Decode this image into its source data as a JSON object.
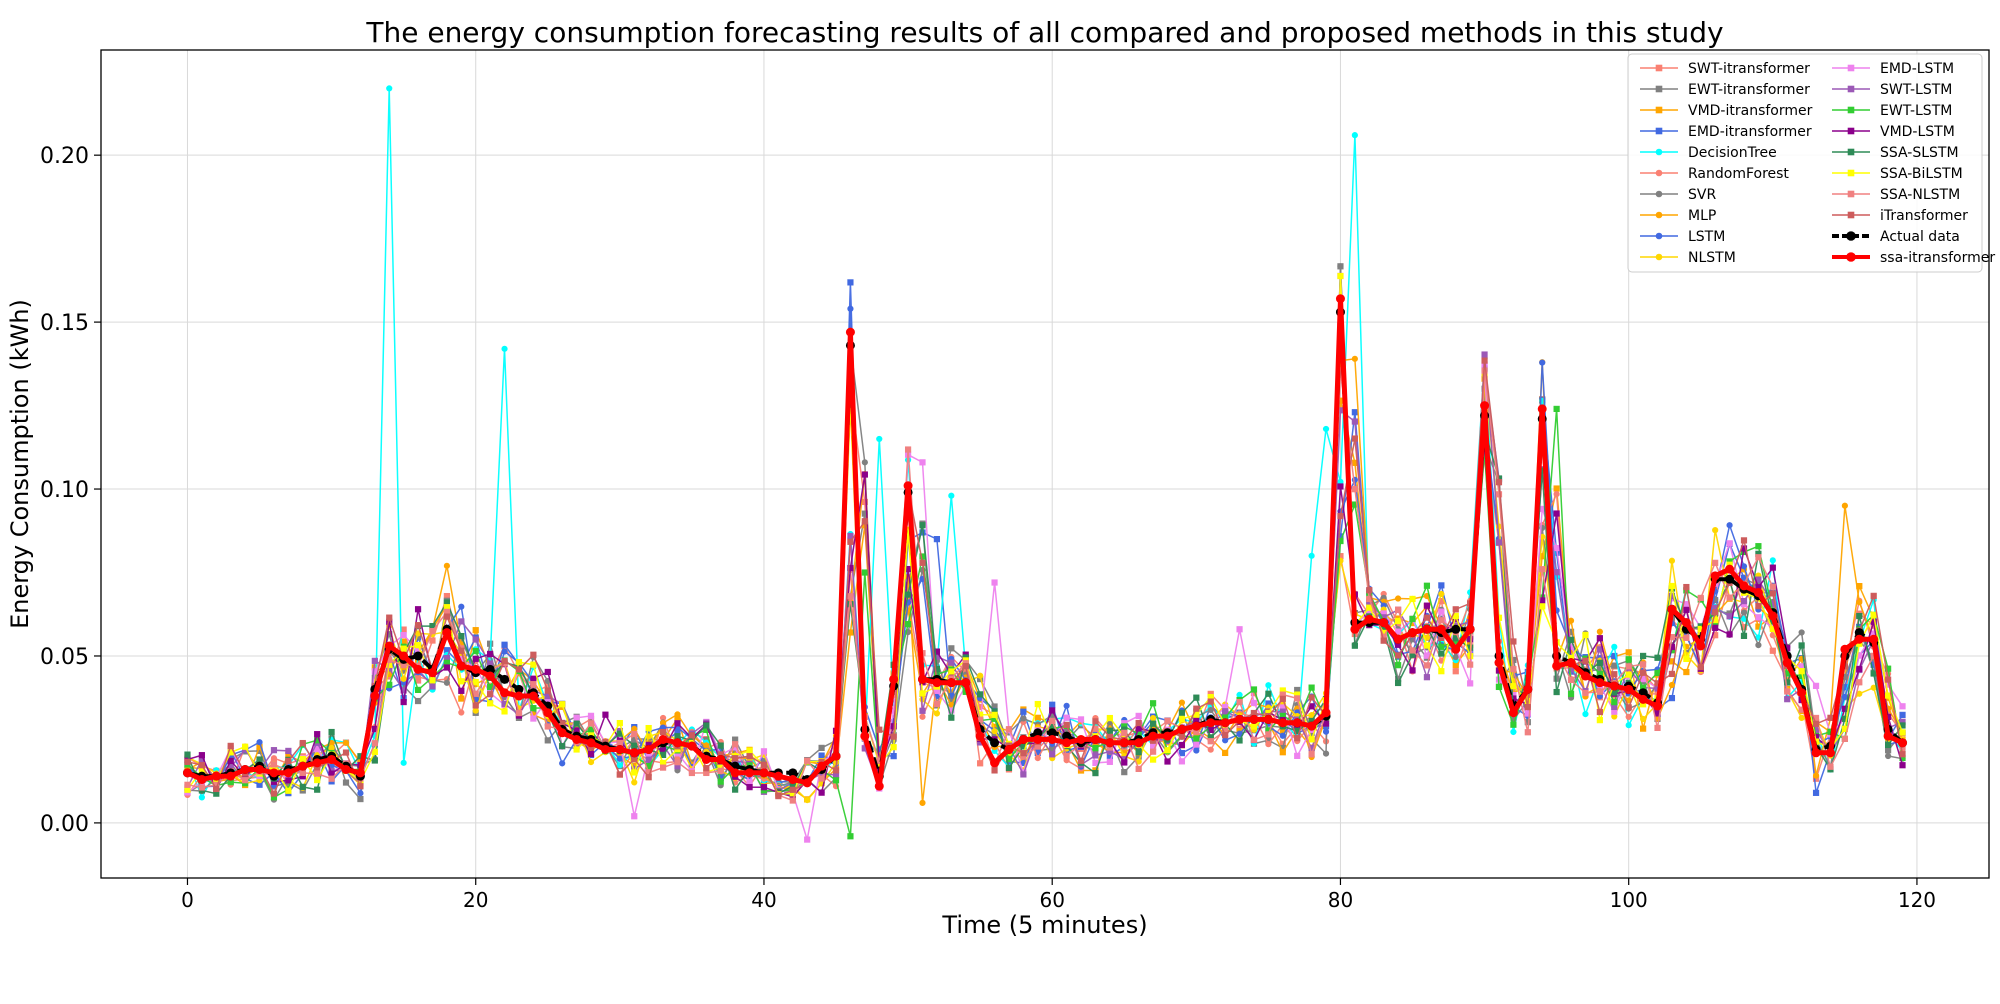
{
  "chart_data": {
    "type": "line",
    "title": "The energy consumption forecasting results of all compared and proposed methods in this study",
    "xlabel": "Time (5 minutes)",
    "ylabel": "Energy Consumption (kWh)",
    "xlim": [
      -6,
      125
    ],
    "ylim": [
      -0.0165,
      0.2315
    ],
    "xticks": [
      0,
      20,
      40,
      60,
      80,
      100,
      120
    ],
    "yticks": [
      0.0,
      0.05,
      0.1,
      0.15,
      0.2
    ],
    "ytick_labels": [
      "0.00",
      "0.05",
      "0.10",
      "0.15",
      "0.20"
    ],
    "grid": true,
    "legend_position": "top-right",
    "legend_columns": 2,
    "x": [
      0,
      1,
      2,
      3,
      4,
      5,
      6,
      7,
      8,
      9,
      10,
      11,
      12,
      13,
      14,
      15,
      16,
      17,
      18,
      19,
      20,
      21,
      22,
      23,
      24,
      25,
      26,
      27,
      28,
      29,
      30,
      31,
      32,
      33,
      34,
      35,
      36,
      37,
      38,
      39,
      40,
      41,
      42,
      43,
      44,
      45,
      46,
      47,
      48,
      49,
      50,
      51,
      52,
      53,
      54,
      55,
      56,
      57,
      58,
      59,
      60,
      61,
      62,
      63,
      64,
      65,
      66,
      67,
      68,
      69,
      70,
      71,
      72,
      73,
      74,
      75,
      76,
      77,
      78,
      79,
      80,
      81,
      82,
      83,
      84,
      85,
      86,
      87,
      88,
      89,
      90,
      91,
      92,
      93,
      94,
      95,
      96,
      97,
      98,
      99,
      100,
      101,
      102,
      103,
      104,
      105,
      106,
      107,
      108,
      109,
      110,
      111,
      112,
      113,
      114,
      115,
      116,
      117,
      118,
      119
    ],
    "actual": [
      0.015,
      0.014,
      0.014,
      0.015,
      0.016,
      0.017,
      0.014,
      0.016,
      0.017,
      0.019,
      0.02,
      0.017,
      0.014,
      0.04,
      0.052,
      0.049,
      0.05,
      0.046,
      0.058,
      0.047,
      0.045,
      0.046,
      0.043,
      0.04,
      0.039,
      0.035,
      0.028,
      0.026,
      0.025,
      0.023,
      0.022,
      0.021,
      0.022,
      0.024,
      0.024,
      0.023,
      0.02,
      0.019,
      0.017,
      0.016,
      0.015,
      0.015,
      0.015,
      0.013,
      0.016,
      0.02,
      0.143,
      0.028,
      0.014,
      0.041,
      0.099,
      0.043,
      0.043,
      0.042,
      0.042,
      0.028,
      0.024,
      0.022,
      0.025,
      0.027,
      0.027,
      0.026,
      0.024,
      0.025,
      0.024,
      0.024,
      0.025,
      0.027,
      0.027,
      0.028,
      0.029,
      0.031,
      0.03,
      0.031,
      0.031,
      0.031,
      0.03,
      0.03,
      0.029,
      0.032,
      0.153,
      0.06,
      0.06,
      0.06,
      0.055,
      0.057,
      0.058,
      0.057,
      0.058,
      0.058,
      0.122,
      0.05,
      0.035,
      0.04,
      0.121,
      0.05,
      0.048,
      0.045,
      0.043,
      0.041,
      0.041,
      0.039,
      0.036,
      0.064,
      0.058,
      0.055,
      0.073,
      0.073,
      0.07,
      0.068,
      0.063,
      0.05,
      0.04,
      0.022,
      0.023,
      0.05,
      0.057,
      0.054,
      0.028,
      0.024
    ],
    "predicted": [
      0.015,
      0.013,
      0.014,
      0.014,
      0.016,
      0.016,
      0.015,
      0.015,
      0.017,
      0.018,
      0.019,
      0.016,
      0.015,
      0.038,
      0.053,
      0.05,
      0.046,
      0.045,
      0.057,
      0.047,
      0.046,
      0.044,
      0.039,
      0.038,
      0.038,
      0.033,
      0.027,
      0.025,
      0.024,
      0.022,
      0.022,
      0.021,
      0.022,
      0.025,
      0.024,
      0.023,
      0.019,
      0.019,
      0.015,
      0.015,
      0.015,
      0.014,
      0.013,
      0.012,
      0.017,
      0.02,
      0.147,
      0.026,
      0.011,
      0.043,
      0.101,
      0.043,
      0.042,
      0.042,
      0.042,
      0.026,
      0.018,
      0.022,
      0.025,
      0.025,
      0.025,
      0.024,
      0.025,
      0.025,
      0.024,
      0.024,
      0.024,
      0.026,
      0.026,
      0.028,
      0.029,
      0.03,
      0.03,
      0.031,
      0.031,
      0.031,
      0.03,
      0.03,
      0.029,
      0.033,
      0.157,
      0.058,
      0.061,
      0.06,
      0.055,
      0.057,
      0.058,
      0.058,
      0.052,
      0.058,
      0.125,
      0.048,
      0.033,
      0.04,
      0.124,
      0.047,
      0.048,
      0.044,
      0.042,
      0.041,
      0.04,
      0.037,
      0.035,
      0.064,
      0.06,
      0.053,
      0.074,
      0.076,
      0.071,
      0.069,
      0.062,
      0.048,
      0.039,
      0.021,
      0.021,
      0.052,
      0.055,
      0.055,
      0.026,
      0.024
    ],
    "series": [
      {
        "name": "SWT-itransformer",
        "color": "#fa8072",
        "marker": "s",
        "seed": 1
      },
      {
        "name": "EWT-itransformer",
        "color": "#808080",
        "marker": "s",
        "seed": 2
      },
      {
        "name": "VMD-itransformer",
        "color": "#ffa500",
        "marker": "s",
        "seed": 3
      },
      {
        "name": "EMD-itransformer",
        "color": "#4169e1",
        "marker": "s",
        "seed": 4
      },
      {
        "name": "DecisionTree",
        "color": "#00ffff",
        "marker": "o",
        "seed": 5
      },
      {
        "name": "RandomForest",
        "color": "#fa8072",
        "marker": "o",
        "seed": 6
      },
      {
        "name": "SVR",
        "color": "#808080",
        "marker": "o",
        "seed": 7
      },
      {
        "name": "MLP",
        "color": "#ffa500",
        "marker": "o",
        "seed": 8
      },
      {
        "name": "LSTM",
        "color": "#4169e1",
        "marker": "o",
        "seed": 9
      },
      {
        "name": "NLSTM",
        "color": "#ffd700",
        "marker": "o",
        "seed": 10
      },
      {
        "name": "EMD-LSTM",
        "color": "#ee82ee",
        "marker": "s",
        "seed": 11
      },
      {
        "name": "SWT-LSTM",
        "color": "#9b59b6",
        "marker": "s",
        "seed": 12
      },
      {
        "name": "EWT-LSTM",
        "color": "#32cd32",
        "marker": "s",
        "seed": 13
      },
      {
        "name": "VMD-LSTM",
        "color": "#8b008b",
        "marker": "s",
        "seed": 14
      },
      {
        "name": "SSA-SLSTM",
        "color": "#2e8b57",
        "marker": "s",
        "seed": 15
      },
      {
        "name": "SSA-BiLSTM",
        "color": "#ffff00",
        "marker": "s",
        "seed": 16
      },
      {
        "name": "SSA-NLSTM",
        "color": "#f08080",
        "marker": "s",
        "seed": 17
      },
      {
        "name": "iTransformer",
        "color": "#cd5c5c",
        "marker": "s",
        "seed": 18
      }
    ],
    "actual_series": {
      "name": "Actual data",
      "color": "#000000"
    },
    "proposed_series": {
      "name": "ssa-itransformer",
      "color": "#ff0000"
    },
    "spikes": [
      {
        "series": "DecisionTree",
        "x": 14,
        "y": 0.22
      },
      {
        "series": "DecisionTree",
        "x": 15,
        "y": 0.018
      },
      {
        "series": "DecisionTree",
        "x": 22,
        "y": 0.142
      },
      {
        "series": "DecisionTree",
        "x": 81,
        "y": 0.206
      },
      {
        "series": "DecisionTree",
        "x": 79,
        "y": 0.118
      },
      {
        "series": "DecisionTree",
        "x": 78,
        "y": 0.08
      },
      {
        "series": "DecisionTree",
        "x": 53,
        "y": 0.098
      },
      {
        "series": "DecisionTree",
        "x": 48,
        "y": 0.115
      },
      {
        "series": "LSTM",
        "x": 46,
        "y": 0.154
      },
      {
        "series": "EMD-LSTM",
        "x": 51,
        "y": 0.108
      },
      {
        "series": "EMD-LSTM",
        "x": 56,
        "y": 0.072
      },
      {
        "series": "EMD-LSTM",
        "x": 73,
        "y": 0.058
      },
      {
        "series": "EMD-LSTM",
        "x": 31,
        "y": 0.002
      },
      {
        "series": "EMD-LSTM",
        "x": 43,
        "y": -0.005
      },
      {
        "series": "EWT-LSTM",
        "x": 46,
        "y": -0.004
      },
      {
        "series": "EWT-LSTM",
        "x": 95,
        "y": 0.124
      },
      {
        "series": "MLP",
        "x": 115,
        "y": 0.095
      },
      {
        "series": "MLP",
        "x": 81,
        "y": 0.139
      },
      {
        "series": "MLP",
        "x": 18,
        "y": 0.077
      },
      {
        "series": "MLP",
        "x": 51,
        "y": 0.006
      },
      {
        "series": "EMD-itransformer",
        "x": 113,
        "y": 0.009
      },
      {
        "series": "EMD-itransformer",
        "x": 52,
        "y": 0.085
      }
    ]
  }
}
